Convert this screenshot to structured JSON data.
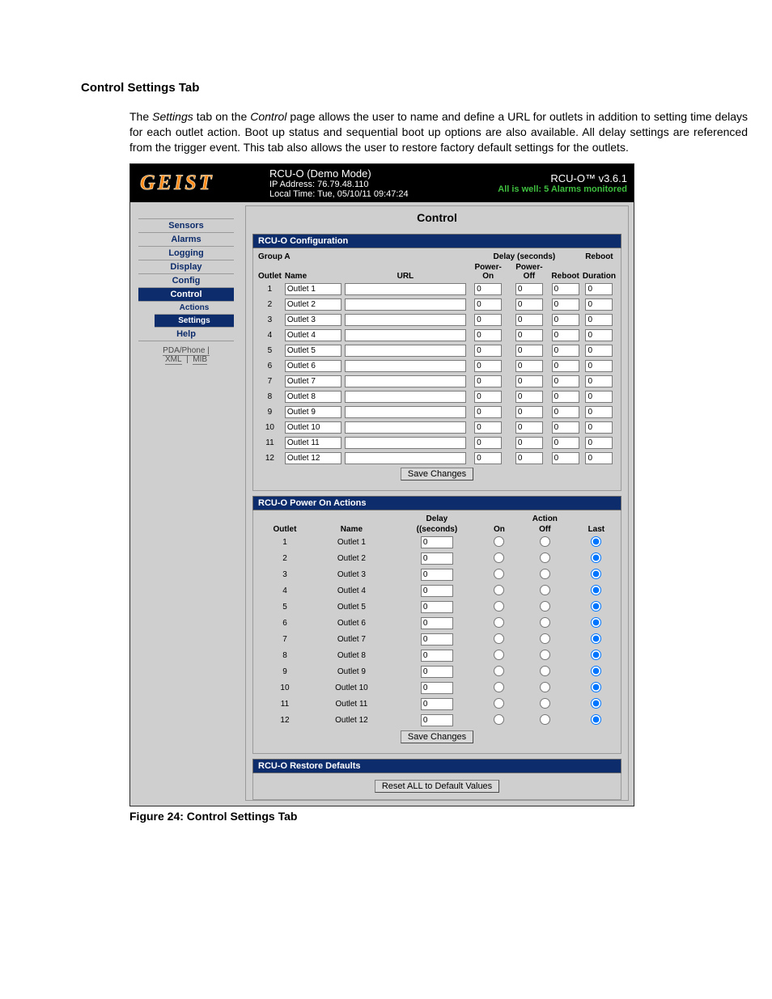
{
  "doc": {
    "heading": "Control Settings Tab",
    "body_html": "The <i>Settings</i> tab on the <i>Control</i> page allows the user to name and define a URL for outlets in addition to setting time delays for each outlet action.  Boot up status and sequential boot up options are also available.  All delay settings are referenced from the trigger event.  This tab also allows the user to restore factory default settings for the outlets.",
    "caption": "Figure 24: Control Settings Tab"
  },
  "header": {
    "logo_text": "GEIST",
    "device_name": "RCU-O (Demo Mode)",
    "ip_label": "IP Address: 76.79.48.110",
    "time_label": "Local Time: Tue, 05/10/11 09:47:24",
    "version": "RCU-O™ v3.6.1",
    "alarm_status": "All is well: 5 Alarms monitored"
  },
  "sidebar": {
    "items": [
      {
        "label": "Sensors",
        "active": false
      },
      {
        "label": "Alarms",
        "active": false
      },
      {
        "label": "Logging",
        "active": false
      },
      {
        "label": "Display",
        "active": false
      },
      {
        "label": "Config",
        "active": false
      },
      {
        "label": "Control",
        "active": true
      },
      {
        "label": "Help",
        "active": false
      }
    ],
    "sub_items": [
      {
        "label": "Actions",
        "active": false
      },
      {
        "label": "Settings",
        "active": true
      }
    ],
    "sub_after_index": 5,
    "footer_line1": "PDA/Phone  |",
    "footer_line2a": "XML",
    "footer_line2b": "MIB"
  },
  "control": {
    "page_title": "Control",
    "config": {
      "section_title": "RCU-O Configuration",
      "group_label": "Group A",
      "cols": {
        "outlet": "Outlet",
        "name": "Name",
        "url": "URL",
        "delay_group": "Delay (seconds)",
        "power_on": "Power-On",
        "power_off": "Power-Off",
        "reboot": "Reboot",
        "reboot_duration": "Reboot Duration"
      },
      "rows": [
        {
          "idx": "1",
          "name": "Outlet 1",
          "url": "",
          "on": "0",
          "off": "0",
          "rb": "0",
          "dur": "0"
        },
        {
          "idx": "2",
          "name": "Outlet 2",
          "url": "",
          "on": "0",
          "off": "0",
          "rb": "0",
          "dur": "0"
        },
        {
          "idx": "3",
          "name": "Outlet 3",
          "url": "",
          "on": "0",
          "off": "0",
          "rb": "0",
          "dur": "0"
        },
        {
          "idx": "4",
          "name": "Outlet 4",
          "url": "",
          "on": "0",
          "off": "0",
          "rb": "0",
          "dur": "0"
        },
        {
          "idx": "5",
          "name": "Outlet 5",
          "url": "",
          "on": "0",
          "off": "0",
          "rb": "0",
          "dur": "0"
        },
        {
          "idx": "6",
          "name": "Outlet 6",
          "url": "",
          "on": "0",
          "off": "0",
          "rb": "0",
          "dur": "0"
        },
        {
          "idx": "7",
          "name": "Outlet 7",
          "url": "",
          "on": "0",
          "off": "0",
          "rb": "0",
          "dur": "0"
        },
        {
          "idx": "8",
          "name": "Outlet 8",
          "url": "",
          "on": "0",
          "off": "0",
          "rb": "0",
          "dur": "0"
        },
        {
          "idx": "9",
          "name": "Outlet 9",
          "url": "",
          "on": "0",
          "off": "0",
          "rb": "0",
          "dur": "0"
        },
        {
          "idx": "10",
          "name": "Outlet 10",
          "url": "",
          "on": "0",
          "off": "0",
          "rb": "0",
          "dur": "0"
        },
        {
          "idx": "11",
          "name": "Outlet 11",
          "url": "",
          "on": "0",
          "off": "0",
          "rb": "0",
          "dur": "0"
        },
        {
          "idx": "12",
          "name": "Outlet 12",
          "url": "",
          "on": "0",
          "off": "0",
          "rb": "0",
          "dur": "0"
        }
      ],
      "save_label": "Save Changes"
    },
    "poweron": {
      "section_title": "RCU-O Power On Actions",
      "cols": {
        "outlet": "Outlet",
        "name": "Name",
        "delay": "Delay (seconds)",
        "action": "Action",
        "on": "On",
        "off": "Off",
        "last": "Last"
      },
      "rows": [
        {
          "idx": "1",
          "name": "Outlet 1",
          "delay": "0",
          "sel": "last"
        },
        {
          "idx": "2",
          "name": "Outlet 2",
          "delay": "0",
          "sel": "last"
        },
        {
          "idx": "3",
          "name": "Outlet 3",
          "delay": "0",
          "sel": "last"
        },
        {
          "idx": "4",
          "name": "Outlet 4",
          "delay": "0",
          "sel": "last"
        },
        {
          "idx": "5",
          "name": "Outlet 5",
          "delay": "0",
          "sel": "last"
        },
        {
          "idx": "6",
          "name": "Outlet 6",
          "delay": "0",
          "sel": "last"
        },
        {
          "idx": "7",
          "name": "Outlet 7",
          "delay": "0",
          "sel": "last"
        },
        {
          "idx": "8",
          "name": "Outlet 8",
          "delay": "0",
          "sel": "last"
        },
        {
          "idx": "9",
          "name": "Outlet 9",
          "delay": "0",
          "sel": "last"
        },
        {
          "idx": "10",
          "name": "Outlet 10",
          "delay": "0",
          "sel": "last"
        },
        {
          "idx": "11",
          "name": "Outlet 11",
          "delay": "0",
          "sel": "last"
        },
        {
          "idx": "12",
          "name": "Outlet 12",
          "delay": "0",
          "sel": "last"
        }
      ],
      "save_label": "Save Changes"
    },
    "restore": {
      "section_title": "RCU-O Restore Defaults",
      "button_label": "Reset ALL to Default Values"
    }
  }
}
